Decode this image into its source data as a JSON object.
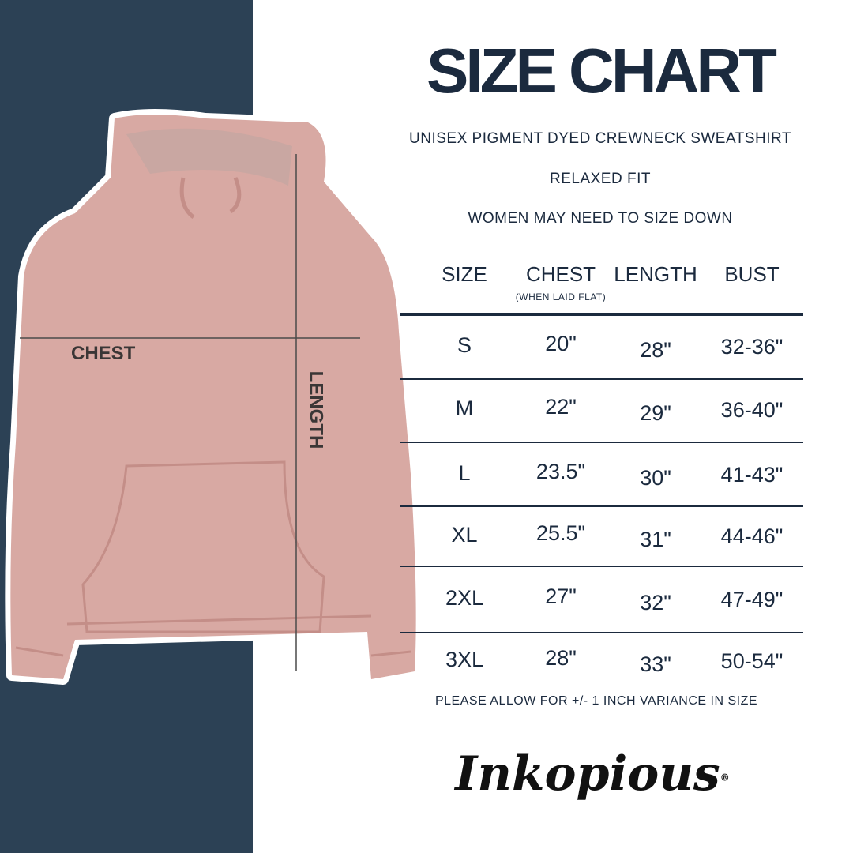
{
  "title": "SIZE CHART",
  "subtitle": "UNISEX PIGMENT DYED CREWNECK SWEATSHIRT",
  "fit": "RELAXED FIT",
  "advice": "WOMEN MAY NEED TO SIZE DOWN",
  "table": {
    "headers": [
      "SIZE",
      "CHEST",
      "LENGTH",
      "BUST"
    ],
    "chest_note": "(WHEN LAID FLAT)",
    "rows": [
      [
        "S",
        "20\"",
        "28\"",
        "32-36\""
      ],
      [
        "M",
        "22\"",
        "29\"",
        "36-40\""
      ],
      [
        "L",
        "23.5\"",
        "30\"",
        "41-43\""
      ],
      [
        "XL",
        "25.5\"",
        "31\"",
        "44-46\""
      ],
      [
        "2XL",
        "27\"",
        "32\"",
        "47-49\""
      ],
      [
        "3XL",
        "28\"",
        "33\"",
        "50-54\""
      ]
    ]
  },
  "footnote": "PLEASE ALLOW FOR +/- 1 INCH VARIANCE IN SIZE",
  "diagram": {
    "chest_label": "CHEST",
    "length_label": "LENGTH"
  },
  "brand": {
    "logo_text": "Inkopious",
    "trademark": "®"
  },
  "colors": {
    "navy_text": "#1b2a3e",
    "panel": "#2c4155",
    "garment": "#d8a9a3"
  }
}
